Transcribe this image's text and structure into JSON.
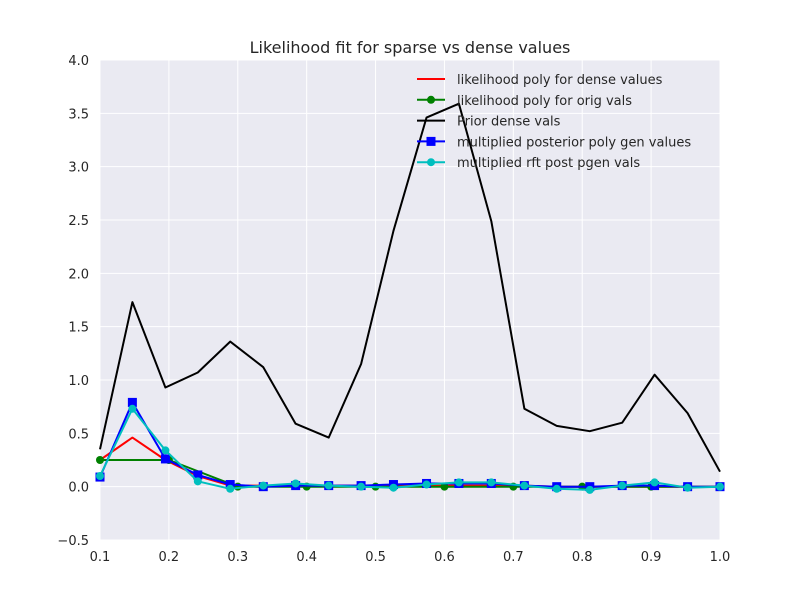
{
  "chart_data": {
    "type": "line",
    "title": "Likelihood fit for sparse vs dense values",
    "xlabel": "",
    "ylabel": "",
    "xlim": [
      0.1,
      1.0
    ],
    "ylim": [
      -0.5,
      4.0
    ],
    "x_ticks": [
      "0.1",
      "0.2",
      "0.3",
      "0.4",
      "0.5",
      "0.6",
      "0.7",
      "0.8",
      "0.9",
      "1.0"
    ],
    "y_ticks": [
      "−0.5",
      "0.0",
      "0.5",
      "1.0",
      "1.5",
      "2.0",
      "2.5",
      "3.0",
      "3.5",
      "4.0"
    ],
    "grid": true,
    "legend_position": "top-right",
    "series": [
      {
        "name": "likelihood poly for dense values",
        "color": "#ff0000",
        "marker": "none",
        "x": [
          0.1,
          0.147,
          0.195,
          0.242,
          0.289,
          0.337,
          0.384,
          0.432,
          0.479,
          0.526,
          0.574,
          0.621,
          0.668,
          0.716,
          0.763,
          0.811,
          0.858,
          0.905,
          0.953,
          1.0
        ],
        "y": [
          0.25,
          0.46,
          0.25,
          0.1,
          0.01,
          0.01,
          0.01,
          0.01,
          0.01,
          0.01,
          0.01,
          0.01,
          0.01,
          0.01,
          0.0,
          0.0,
          0.0,
          0.0,
          0.0,
          0.0
        ]
      },
      {
        "name": "likelihood poly for orig vals",
        "color": "#008000",
        "marker": "circle",
        "x": [
          0.1,
          0.2,
          0.3,
          0.4,
          0.5,
          0.6,
          0.7,
          0.8,
          0.9,
          1.0
        ],
        "y": [
          0.25,
          0.25,
          0.0,
          0.0,
          0.0,
          0.0,
          0.0,
          0.0,
          0.0,
          0.0
        ]
      },
      {
        "name": "Prior dense vals",
        "color": "#000000",
        "marker": "none",
        "x": [
          0.1,
          0.147,
          0.195,
          0.242,
          0.289,
          0.337,
          0.384,
          0.432,
          0.479,
          0.526,
          0.574,
          0.621,
          0.668,
          0.716,
          0.763,
          0.811,
          0.858,
          0.905,
          0.953,
          1.0
        ],
        "y": [
          0.35,
          1.73,
          0.93,
          1.07,
          1.36,
          1.12,
          0.59,
          0.46,
          1.15,
          2.4,
          3.46,
          3.59,
          2.49,
          0.73,
          0.57,
          0.52,
          0.6,
          1.05,
          0.69,
          0.14
        ]
      },
      {
        "name": "multiplied posterior poly gen values",
        "color": "#0000ff",
        "marker": "square",
        "x": [
          0.1,
          0.147,
          0.195,
          0.242,
          0.289,
          0.337,
          0.384,
          0.432,
          0.479,
          0.526,
          0.574,
          0.621,
          0.668,
          0.716,
          0.763,
          0.811,
          0.858,
          0.905,
          0.953,
          1.0
        ],
        "y": [
          0.09,
          0.79,
          0.26,
          0.11,
          0.02,
          0.0,
          0.01,
          0.01,
          0.01,
          0.02,
          0.03,
          0.03,
          0.03,
          0.01,
          0.0,
          0.0,
          0.01,
          0.01,
          0.0,
          0.0
        ]
      },
      {
        "name": "multiplied rft post pgen vals",
        "color": "#00bfbf",
        "marker": "circle",
        "x": [
          0.1,
          0.147,
          0.195,
          0.242,
          0.289,
          0.337,
          0.384,
          0.432,
          0.479,
          0.526,
          0.574,
          0.621,
          0.668,
          0.716,
          0.763,
          0.811,
          0.858,
          0.905,
          0.953,
          1.0
        ],
        "y": [
          0.1,
          0.73,
          0.34,
          0.05,
          -0.02,
          0.01,
          0.03,
          0.01,
          0.0,
          -0.01,
          0.02,
          0.04,
          0.04,
          0.01,
          -0.02,
          -0.03,
          0.01,
          0.04,
          -0.01,
          0.0
        ]
      }
    ]
  }
}
